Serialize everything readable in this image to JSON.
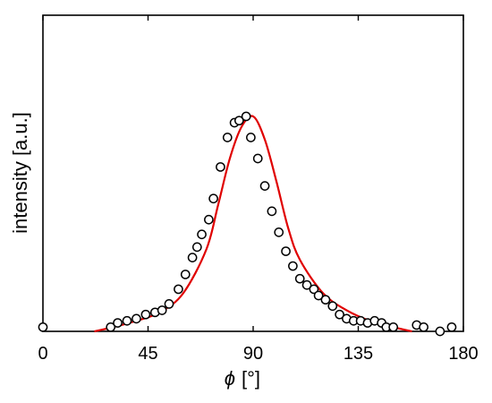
{
  "chart_data": {
    "type": "scatter",
    "xlabel_symbol": "ϕ",
    "xlabel_unit": "[°]",
    "ylabel": "intensity [a.u.]",
    "xlim": [
      0,
      180
    ],
    "ylim": [
      0,
      1.5
    ],
    "xticks": [
      0,
      45,
      90,
      135,
      180
    ],
    "yticks": [],
    "grid": false,
    "legend": "none",
    "colors": {
      "points": "#000000",
      "fit": "#e00000",
      "axis": "#000000"
    },
    "series": [
      {
        "type": "scatter",
        "marker": "open-circle",
        "x": [
          0,
          29,
          32,
          36,
          40,
          44,
          48,
          51,
          54,
          58,
          61,
          64,
          66,
          68,
          71,
          73,
          76,
          79,
          82,
          84,
          87,
          89,
          92,
          95,
          98,
          101,
          104,
          107,
          110,
          113,
          116,
          118,
          121,
          124,
          127,
          130,
          133,
          136,
          139,
          142,
          145,
          147,
          150,
          160,
          163,
          170,
          175
        ],
        "y": [
          0.02,
          0.02,
          0.04,
          0.05,
          0.06,
          0.08,
          0.09,
          0.1,
          0.13,
          0.2,
          0.27,
          0.35,
          0.4,
          0.46,
          0.53,
          0.63,
          0.78,
          0.92,
          0.99,
          1.0,
          1.02,
          0.92,
          0.82,
          0.69,
          0.57,
          0.47,
          0.38,
          0.31,
          0.25,
          0.22,
          0.2,
          0.17,
          0.15,
          0.12,
          0.08,
          0.06,
          0.05,
          0.05,
          0.04,
          0.05,
          0.04,
          0.02,
          0.02,
          0.03,
          0.02,
          0.0,
          0.02
        ]
      },
      {
        "type": "line",
        "x": [
          22,
          30,
          40,
          50,
          60,
          70,
          75,
          80,
          85,
          90,
          95,
          100,
          105,
          110,
          120,
          130,
          140,
          150,
          158
        ],
        "y": [
          0.0,
          0.02,
          0.05,
          0.09,
          0.18,
          0.39,
          0.6,
          0.82,
          0.97,
          1.02,
          0.91,
          0.71,
          0.49,
          0.34,
          0.18,
          0.1,
          0.05,
          0.02,
          0.0
        ]
      }
    ]
  }
}
